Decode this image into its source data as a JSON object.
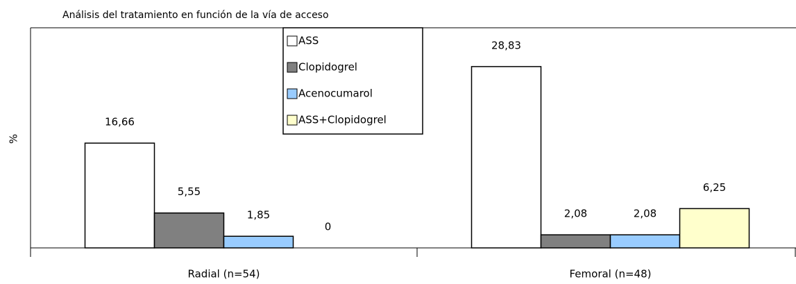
{
  "chart_data": {
    "type": "bar",
    "title": "Análisis del tratamiento en función de la vía de acceso",
    "y_label": "%",
    "categories": [
      "Radial (n=54)",
      "Femoral (n=48)"
    ],
    "series": [
      {
        "name": "ASS",
        "color": "#ffffff",
        "values": [
          16.66,
          28.83
        ],
        "value_labels": [
          "16,66",
          "28,83"
        ]
      },
      {
        "name": "Clopidogrel",
        "color": "#808080",
        "values": [
          5.55,
          2.08
        ],
        "value_labels": [
          "5,55",
          "2,08"
        ]
      },
      {
        "name": "Acenocumarol",
        "color": "#99ccff",
        "values": [
          1.85,
          2.08
        ],
        "value_labels": [
          "1,85",
          "2,08"
        ]
      },
      {
        "name": "ASS+Clopidogrel",
        "color": "#ffffcc",
        "values": [
          0,
          6.25
        ],
        "value_labels": [
          "0",
          "6,25"
        ]
      }
    ],
    "ylim": [
      0,
      35
    ],
    "legend": "top"
  }
}
